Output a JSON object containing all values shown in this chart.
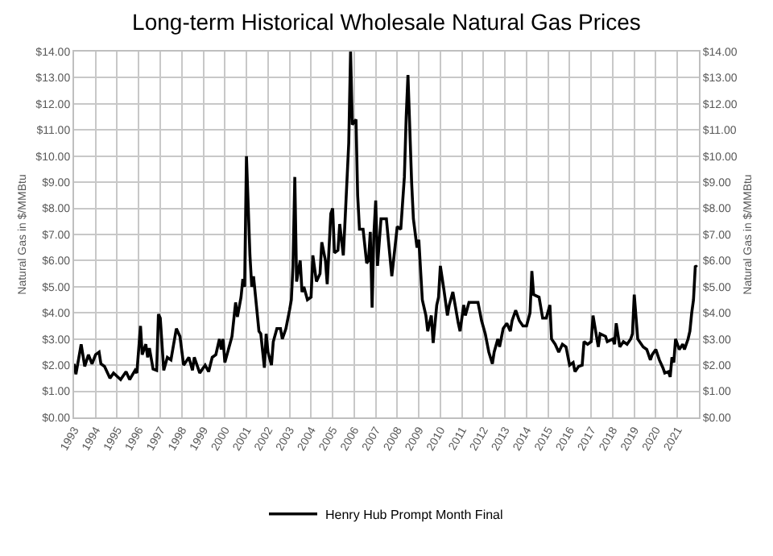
{
  "chart_data": {
    "type": "line",
    "title": "Long-term Historical Wholesale Natural Gas Prices",
    "ylabel": "Natural Gas in $/MMBtu",
    "y2label": "Natural Gas in $/MMBtu",
    "x": [
      "1993-01",
      "1993-02",
      "1993-05",
      "1993-07",
      "1993-09",
      "1993-11",
      "1994-01",
      "1994-03",
      "1994-04",
      "1994-06",
      "1994-09",
      "1994-11",
      "1995-03",
      "1995-06",
      "1995-08",
      "1995-11",
      "1995-12",
      "1996-02",
      "1996-03",
      "1996-05",
      "1996-06",
      "1996-07",
      "1996-09",
      "1996-11",
      "1996-12",
      "1997-01",
      "1997-03",
      "1997-05",
      "1997-07",
      "1997-10",
      "1997-12",
      "1998-02",
      "1998-05",
      "1998-07",
      "1998-08",
      "1998-11",
      "1999-02",
      "1999-04",
      "1999-06",
      "1999-08",
      "1999-10",
      "1999-11",
      "1999-12",
      "2000-01",
      "2000-03",
      "2000-05",
      "2000-07",
      "2000-08",
      "2000-10",
      "2000-11",
      "2000-12",
      "2001-01",
      "2001-03",
      "2001-04",
      "2001-05",
      "2001-08",
      "2001-09",
      "2001-11",
      "2001-12",
      "2002-01",
      "2002-03",
      "2002-04",
      "2002-06",
      "2002-08",
      "2002-09",
      "2002-11",
      "2003-01",
      "2003-02",
      "2003-03",
      "2003-04",
      "2003-05",
      "2003-07",
      "2003-08",
      "2003-09",
      "2003-11",
      "2004-01",
      "2004-02",
      "2004-04",
      "2004-06",
      "2004-07",
      "2004-09",
      "2004-10",
      "2004-12",
      "2005-01",
      "2005-02",
      "2005-04",
      "2005-05",
      "2005-07",
      "2005-08",
      "2005-10",
      "2005-11",
      "2005-12",
      "2006-02",
      "2006-03",
      "2006-04",
      "2006-06",
      "2006-08",
      "2006-09",
      "2006-10",
      "2006-11",
      "2006-12",
      "2007-01",
      "2007-02",
      "2007-04",
      "2007-07",
      "2007-10",
      "2008-01",
      "2008-03",
      "2008-05",
      "2008-06",
      "2008-07",
      "2008-09",
      "2008-10",
      "2008-12",
      "2009-01",
      "2009-03",
      "2009-05",
      "2009-06",
      "2009-08",
      "2009-09",
      "2009-11",
      "2009-12",
      "2010-01",
      "2010-03",
      "2010-05",
      "2010-06",
      "2010-08",
      "2010-11",
      "2010-12",
      "2011-02",
      "2011-03",
      "2011-05",
      "2011-08",
      "2011-10",
      "2011-12",
      "2012-02",
      "2012-04",
      "2012-06",
      "2012-07",
      "2012-09",
      "2012-10",
      "2012-12",
      "2013-02",
      "2013-04",
      "2013-05",
      "2013-07",
      "2013-09",
      "2013-11",
      "2014-01",
      "2014-03",
      "2014-04",
      "2014-05",
      "2014-08",
      "2014-10",
      "2014-12",
      "2015-02",
      "2015-03",
      "2015-05",
      "2015-07",
      "2015-09",
      "2015-11",
      "2016-01",
      "2016-03",
      "2016-04",
      "2016-06",
      "2016-08",
      "2016-09",
      "2016-11",
      "2017-01",
      "2017-02",
      "2017-04",
      "2017-05",
      "2017-06",
      "2017-09",
      "2017-10",
      "2018-01",
      "2018-02",
      "2018-03",
      "2018-05",
      "2018-07",
      "2018-09",
      "2018-11",
      "2018-12",
      "2019-01",
      "2019-03",
      "2019-06",
      "2019-08",
      "2019-10",
      "2019-11",
      "2020-01",
      "2020-03",
      "2020-05",
      "2020-06",
      "2020-08",
      "2020-09",
      "2020-10",
      "2020-11",
      "2020-12",
      "2021-02",
      "2021-04",
      "2021-05",
      "2021-07",
      "2021-08",
      "2021-09",
      "2021-10",
      "2021-11",
      "2021-12"
    ],
    "series": [
      {
        "name": "Henry Hub Prompt Month Final",
        "color": "#000000",
        "values": [
          2.05,
          1.65,
          2.8,
          1.95,
          2.4,
          2.05,
          2.4,
          2.5,
          2.05,
          1.95,
          1.5,
          1.7,
          1.45,
          1.75,
          1.45,
          1.8,
          1.7,
          3.5,
          2.4,
          2.8,
          2.3,
          2.65,
          1.85,
          1.8,
          3.95,
          3.8,
          1.8,
          2.3,
          2.2,
          3.4,
          3.1,
          2.0,
          2.3,
          1.8,
          2.3,
          1.7,
          2.0,
          1.75,
          2.3,
          2.4,
          3.0,
          2.6,
          3.0,
          2.1,
          2.6,
          3.1,
          4.4,
          3.85,
          4.6,
          5.3,
          5.0,
          10.0,
          6.2,
          5.0,
          5.4,
          3.3,
          3.2,
          1.9,
          3.2,
          2.5,
          2.0,
          2.9,
          3.4,
          3.4,
          3.0,
          3.4,
          4.1,
          4.5,
          5.8,
          9.2,
          5.2,
          6.0,
          4.8,
          5.0,
          4.5,
          4.6,
          6.2,
          5.2,
          5.5,
          6.7,
          6.0,
          5.1,
          7.8,
          8.0,
          6.3,
          6.4,
          7.4,
          6.2,
          7.6,
          10.5,
          14.0,
          11.2,
          11.4,
          8.5,
          7.2,
          7.2,
          5.9,
          6.0,
          7.1,
          4.2,
          7.0,
          8.3,
          5.8,
          7.6,
          7.6,
          5.4,
          7.3,
          7.2,
          9.2,
          11.5,
          13.1,
          9.0,
          7.6,
          6.5,
          6.8,
          4.5,
          3.9,
          3.3,
          3.9,
          2.85,
          4.3,
          4.6,
          5.8,
          4.9,
          3.9,
          4.3,
          4.8,
          3.6,
          3.3,
          4.3,
          3.9,
          4.4,
          4.4,
          4.4,
          3.7,
          3.2,
          2.5,
          2.05,
          2.5,
          3.0,
          2.7,
          3.4,
          3.6,
          3.3,
          3.7,
          4.1,
          3.7,
          3.5,
          3.5,
          4.0,
          5.6,
          4.7,
          4.6,
          3.8,
          3.8,
          4.3,
          3.0,
          2.8,
          2.5,
          2.8,
          2.7,
          2.0,
          2.1,
          1.75,
          1.95,
          2.0,
          2.9,
          2.8,
          2.9,
          3.9,
          3.1,
          2.7,
          3.2,
          3.1,
          2.9,
          3.0,
          2.8,
          3.6,
          2.7,
          2.9,
          2.8,
          3.0,
          3.2,
          4.7,
          3.0,
          2.7,
          2.6,
          2.2,
          2.4,
          2.6,
          2.2,
          1.9,
          1.7,
          1.75,
          1.55,
          2.3,
          2.1,
          3.0,
          2.6,
          2.8,
          2.6,
          3.0,
          3.3,
          4.0,
          4.5,
          5.8,
          5.75
        ]
      }
    ],
    "xlim": [
      "1993-01",
      "2022-01"
    ],
    "xticks": [
      {
        "value": "1993",
        "label": "1993"
      },
      {
        "value": "1994",
        "label": "1994"
      },
      {
        "value": "1995",
        "label": "1995"
      },
      {
        "value": "1996",
        "label": "1996"
      },
      {
        "value": "1997",
        "label": "1997"
      },
      {
        "value": "1998",
        "label": "1998"
      },
      {
        "value": "1999",
        "label": "1999"
      },
      {
        "value": "2000",
        "label": "2000"
      },
      {
        "value": "2001",
        "label": "2001"
      },
      {
        "value": "2002",
        "label": "2002"
      },
      {
        "value": "2003",
        "label": "2003"
      },
      {
        "value": "2004",
        "label": "2004"
      },
      {
        "value": "2005",
        "label": "2005"
      },
      {
        "value": "2006",
        "label": "2006"
      },
      {
        "value": "2007",
        "label": "2007"
      },
      {
        "value": "2008",
        "label": "2008"
      },
      {
        "value": "2009",
        "label": "2009"
      },
      {
        "value": "2010",
        "label": "2010"
      },
      {
        "value": "2011",
        "label": "2011"
      },
      {
        "value": "2012",
        "label": "2012"
      },
      {
        "value": "2013",
        "label": "2013"
      },
      {
        "value": "2014",
        "label": "2014"
      },
      {
        "value": "2015",
        "label": "2015"
      },
      {
        "value": "2016",
        "label": "2016"
      },
      {
        "value": "2017",
        "label": "2017"
      },
      {
        "value": "2018",
        "label": "2018"
      },
      {
        "value": "2019",
        "label": "2019"
      },
      {
        "value": "2020",
        "label": "2020"
      },
      {
        "value": "2021",
        "label": "2021"
      }
    ],
    "ylim": [
      0,
      14
    ],
    "yticks": [
      {
        "value": 0,
        "label": "$0.00"
      },
      {
        "value": 1,
        "label": "$1.00"
      },
      {
        "value": 2,
        "label": "$2.00"
      },
      {
        "value": 3,
        "label": "$3.00"
      },
      {
        "value": 4,
        "label": "$4.00"
      },
      {
        "value": 5,
        "label": "$5.00"
      },
      {
        "value": 6,
        "label": "$6.00"
      },
      {
        "value": 7,
        "label": "$7.00"
      },
      {
        "value": 8,
        "label": "$8.00"
      },
      {
        "value": 9,
        "label": "$9.00"
      },
      {
        "value": 10,
        "label": "$10.00"
      },
      {
        "value": 11,
        "label": "$11.00"
      },
      {
        "value": 12,
        "label": "$12.00"
      },
      {
        "value": 13,
        "label": "$13.00"
      },
      {
        "value": 14,
        "label": "$14.00"
      }
    ],
    "y2lim": [
      0,
      14
    ],
    "y2ticks": [
      {
        "value": 0,
        "label": "$0.00"
      },
      {
        "value": 1,
        "label": "$1.00"
      },
      {
        "value": 2,
        "label": "$2.00"
      },
      {
        "value": 3,
        "label": "$3.00"
      },
      {
        "value": 4,
        "label": "$4.00"
      },
      {
        "value": 5,
        "label": "$5.00"
      },
      {
        "value": 6,
        "label": "$6.00"
      },
      {
        "value": 7,
        "label": "$7.00"
      },
      {
        "value": 8,
        "label": "$8.00"
      },
      {
        "value": 9,
        "label": "$9.00"
      },
      {
        "value": 10,
        "label": "$10.00"
      },
      {
        "value": 11,
        "label": "$11.00"
      },
      {
        "value": 12,
        "label": "$12.00"
      },
      {
        "value": 13,
        "label": "$13.00"
      },
      {
        "value": 14,
        "label": "$14.00"
      }
    ],
    "grid": true,
    "legend": "bottom",
    "marker": "none",
    "line_style": "solid"
  }
}
